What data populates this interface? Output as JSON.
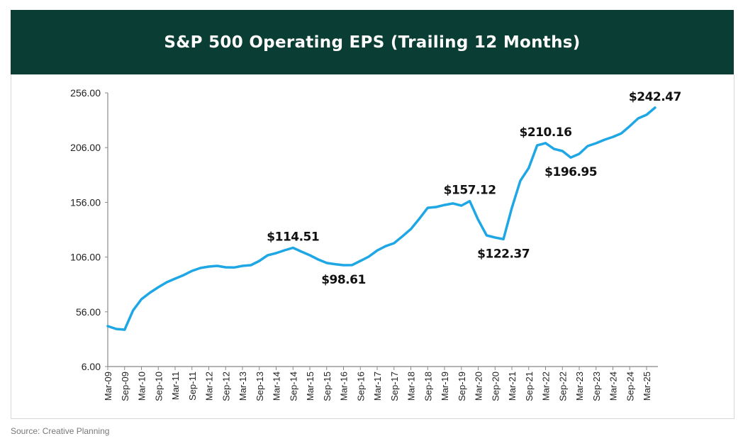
{
  "header": {
    "title": "S&P 500 Operating EPS (Trailing 12 Months)"
  },
  "footer": {
    "source": "Source: Creative Planning"
  },
  "chart_data": {
    "type": "line",
    "title": "S&P 500 Operating EPS (Trailing 12 Months)",
    "xlabel": "",
    "ylabel": "",
    "ylim": [
      6,
      256
    ],
    "yticks": [
      "6.00",
      "56.00",
      "106.00",
      "156.00",
      "206.00",
      "256.00"
    ],
    "ytick_values": [
      6,
      56,
      106,
      156,
      206,
      256
    ],
    "xtick_labels": [
      "Mar-09",
      "Sep-09",
      "Mar-10",
      "Sep-10",
      "Mar-11",
      "Sep-11",
      "Mar-12",
      "Sep-12",
      "Mar-13",
      "Sep-13",
      "Mar-14",
      "Sep-14",
      "Mar-15",
      "Sep-15",
      "Mar-16",
      "Sep-16",
      "Mar-17",
      "Sep-17",
      "Mar-18",
      "Sep-18",
      "Mar-19",
      "Sep-19",
      "Mar-20",
      "Sep-20",
      "Mar-21",
      "Sep-21",
      "Mar-22",
      "Sep-22",
      "Mar-23",
      "Sep-23",
      "Mar-24",
      "Sep-24",
      "Mar-25"
    ],
    "grid": false,
    "line_color": "#1ea7e4",
    "x_start": "Mar-09",
    "x_frequency": "quarterly",
    "values": [
      42.9,
      40.3,
      39.7,
      57.2,
      67.5,
      73.4,
      78.5,
      83.0,
      86.3,
      89.5,
      93.4,
      96.0,
      97.3,
      98.0,
      96.7,
      96.5,
      98.0,
      98.6,
      102.5,
      107.7,
      109.6,
      112.2,
      114.51,
      111.0,
      107.7,
      103.8,
      100.6,
      99.5,
      98.61,
      98.7,
      102.5,
      106.4,
      112.0,
      116.0,
      118.7,
      125.0,
      131.6,
      141.0,
      151.0,
      151.7,
      153.6,
      155.0,
      153.0,
      157.12,
      140.0,
      125.8,
      123.9,
      122.37,
      151.0,
      175.7,
      187.4,
      208.0,
      210.16,
      204.8,
      202.9,
      196.95,
      200.3,
      207.4,
      210.0,
      213.2,
      215.8,
      219.0,
      225.6,
      232.7,
      236.0,
      242.47
    ],
    "annotations": [
      {
        "label": "$114.51",
        "index": 22,
        "position": "above"
      },
      {
        "label": "$98.61",
        "index": 28,
        "position": "below"
      },
      {
        "label": "$157.12",
        "index": 43,
        "position": "above"
      },
      {
        "label": "$122.37",
        "index": 47,
        "position": "below"
      },
      {
        "label": "$210.16",
        "index": 52,
        "position": "above"
      },
      {
        "label": "$196.95",
        "index": 55,
        "position": "below"
      },
      {
        "label": "$242.47",
        "index": 65,
        "position": "above"
      }
    ]
  }
}
